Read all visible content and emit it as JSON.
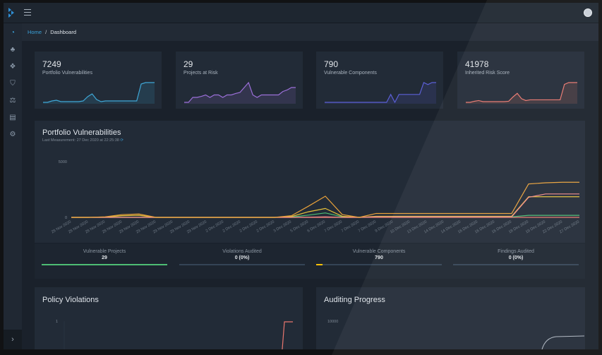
{
  "header": {
    "logo": "dependency-track-logo",
    "menu_icon": "hamburger-icon",
    "user_icon": "user-avatar-icon"
  },
  "sidebar": {
    "items": [
      {
        "icon": "dashboard-gauge-icon"
      },
      {
        "icon": "projects-sitemap-icon"
      },
      {
        "icon": "components-cubes-icon"
      },
      {
        "icon": "vulnerabilities-shield-icon"
      },
      {
        "icon": "licenses-balance-icon"
      },
      {
        "icon": "policy-management-icon"
      },
      {
        "icon": "admin-cogs-icon"
      }
    ],
    "toggle_icon": "chevron-right-icon"
  },
  "breadcrumb": {
    "home": "Home",
    "separator": "/",
    "current": "Dashboard"
  },
  "kpis": [
    {
      "value": "7249",
      "label": "Portfolio Vulnerabilities",
      "color": "#3fa7d6",
      "trend": [
        0,
        0,
        1,
        1.5,
        0.5,
        0.5,
        0.5,
        0.5,
        0.5,
        1,
        4,
        6,
        2,
        0.5,
        1,
        1,
        1,
        1,
        1,
        1,
        1,
        1,
        13,
        14,
        14,
        14
      ]
    },
    {
      "value": "29",
      "label": "Projects at Risk",
      "color": "#9b6fd8",
      "trend": [
        0,
        0,
        1,
        1,
        1.2,
        1.5,
        1,
        1.5,
        1.5,
        1,
        1.5,
        1.5,
        1.8,
        2,
        3,
        4,
        1.5,
        1,
        1.5,
        1.5,
        1.5,
        1.5,
        1.5,
        2.2,
        2.5,
        3,
        3
      ]
    },
    {
      "value": "790",
      "label": "Vulnerable Components",
      "color": "#5b5fd6",
      "trend": [
        0,
        0,
        0,
        0,
        0,
        0,
        0,
        0,
        0,
        0,
        0,
        0,
        0,
        0,
        0,
        0,
        2,
        0,
        2,
        2,
        2,
        2,
        2,
        2,
        5,
        4.5,
        5,
        5
      ]
    },
    {
      "value": "41978",
      "label": "Inherited Risk Score",
      "color": "#e8766e",
      "trend": [
        0,
        0,
        0.3,
        0.5,
        0.2,
        0.2,
        0.2,
        0.2,
        0.2,
        0.2,
        0.3,
        1.5,
        2.5,
        1,
        0.5,
        0.7,
        0.7,
        0.7,
        0.7,
        0.7,
        0.7,
        0.7,
        0.7,
        5,
        5.5,
        5.5,
        5.5
      ]
    }
  ],
  "portfolio": {
    "title": "Portfolio Vulnerabilities",
    "last_measurement": "Last Measurement: 27 Dec 2020 at 22:25:38",
    "refresh_icon": "refresh-icon",
    "stats": [
      {
        "label": "Vulnerable Projects",
        "value": "29",
        "progress": 1.0,
        "color": "#4dbd74"
      },
      {
        "label": "Violations Audited",
        "value": "0 (0%)",
        "progress": 0,
        "color": "#4dbd74"
      },
      {
        "label": "Vulnerable Components",
        "value": "790",
        "progress": 0.05,
        "color": "#ffc107"
      },
      {
        "label": "Findings Audited",
        "value": "0 (0%)",
        "progress": 0,
        "color": "#4dbd74"
      }
    ]
  },
  "chart_data": {
    "type": "line",
    "title": "Portfolio Vulnerabilities",
    "ylim": [
      0,
      5000
    ],
    "yticks": [
      "5000",
      "0"
    ],
    "grid": false,
    "categories": [
      "28 Nov 2020",
      "28 Nov 2020",
      "28 Nov 2020",
      "28 Nov 2020",
      "29 Nov 2020",
      "29 Nov 2020",
      "29 Nov 2020",
      "29 Nov 2020",
      "29 Nov 2020",
      "2 Dec 2020",
      "2 Dec 2020",
      "2 Dec 2020",
      "2 Dec 2020",
      "3 Dec 2020",
      "5 Dec 2020",
      "6 Dec 2020",
      "7 Dec 2020",
      "7 Dec 2020",
      "7 Dec 2020",
      "9 Dec 2020",
      "10 Dec 2020",
      "13 Dec 2020",
      "14 Dec 2020",
      "14 Dec 2020",
      "16 Dec 2020",
      "16 Dec 2020",
      "16 Dec 2020",
      "18 Dec 2020",
      "19 Dec 2020",
      "22 Dec 2020",
      "27 Dec 2020"
    ],
    "series": [
      {
        "color": "#e8a13a",
        "values": [
          0,
          0,
          50,
          250,
          300,
          0,
          0,
          0,
          0,
          0,
          0,
          0,
          0,
          150,
          1000,
          1900,
          250,
          0,
          350,
          350,
          350,
          350,
          350,
          350,
          350,
          350,
          350,
          3000,
          3100,
          3150,
          3150
        ]
      },
      {
        "color": "#f08a8a",
        "values": [
          0,
          0,
          0,
          0,
          0,
          0,
          0,
          0,
          0,
          0,
          0,
          0,
          0,
          0,
          20,
          50,
          0,
          0,
          50,
          50,
          50,
          50,
          50,
          50,
          50,
          50,
          50,
          1800,
          2100,
          2100,
          2100
        ]
      },
      {
        "color": "#e6c13a",
        "values": [
          0,
          0,
          30,
          150,
          180,
          0,
          0,
          0,
          0,
          0,
          0,
          0,
          0,
          80,
          500,
          800,
          100,
          0,
          100,
          100,
          100,
          100,
          100,
          100,
          100,
          100,
          100,
          1850,
          1850,
          1850,
          1850
        ]
      },
      {
        "color": "#4dbd74",
        "values": [
          0,
          0,
          0,
          0,
          0,
          0,
          0,
          0,
          0,
          0,
          0,
          0,
          0,
          30,
          200,
          400,
          50,
          0,
          50,
          50,
          50,
          50,
          50,
          50,
          50,
          50,
          50,
          180,
          180,
          180,
          180
        ]
      },
      {
        "color": "#e8766e",
        "values": [
          0,
          0,
          0,
          0,
          0,
          0,
          0,
          0,
          0,
          0,
          0,
          0,
          0,
          0,
          0,
          0,
          0,
          0,
          0,
          0,
          0,
          0,
          0,
          0,
          0,
          0,
          0,
          0,
          0,
          0,
          0
        ]
      }
    ]
  },
  "policy": {
    "title": "Policy Violations",
    "ytick": "1"
  },
  "auditing": {
    "title": "Auditing Progress",
    "ytick": "10000"
  }
}
